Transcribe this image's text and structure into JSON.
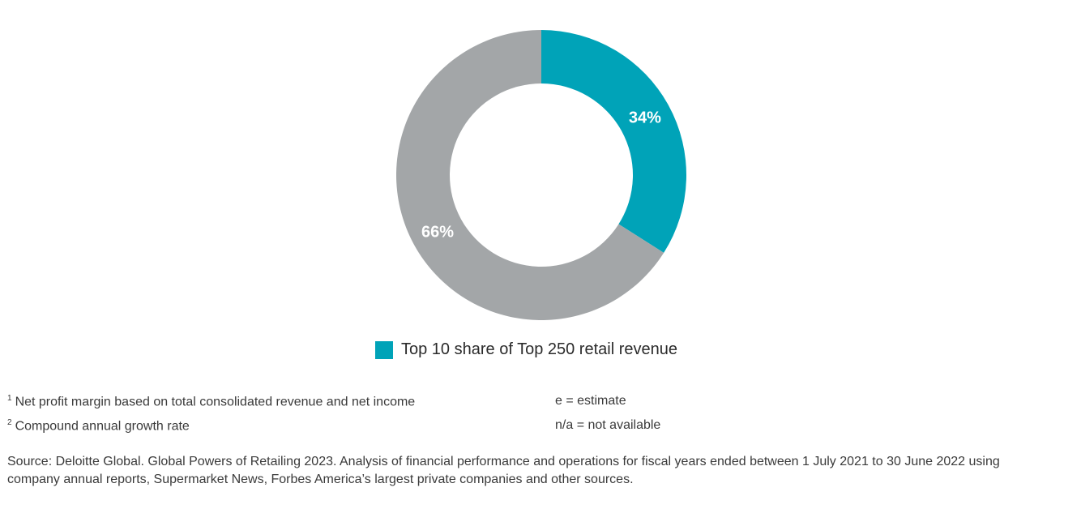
{
  "chart_data": {
    "type": "pie",
    "title": "",
    "slices": [
      {
        "name": "Top 10 share of Top 250 retail revenue",
        "value": 34,
        "label": "34%",
        "color": "#00A3B8"
      },
      {
        "name": "",
        "value": 66,
        "label": "66%",
        "color": "#A3A6A8"
      }
    ],
    "donut": true,
    "legend": {
      "placement": "bottom",
      "entries": [
        {
          "label": "Top 10 share of Top 250 retail revenue",
          "color": "#00A3B8"
        }
      ]
    }
  },
  "footnotes": {
    "note1_marker": "1",
    "note1_text": "Net profit margin based on total consolidated revenue and net income",
    "note2_marker": "2",
    "note2_text": "Compound annual growth rate",
    "estimate": "e = estimate",
    "not_available": "n/a = not available"
  },
  "source_line1": "Source: Deloitte Global. Global Powers of Retailing 2023. Analysis of financial performance and operations for fiscal years ended between 1 July 2021 to 30 June 2022 using",
  "source_line2": "company annual reports, Supermarket News, Forbes America’s largest private companies and other sources."
}
